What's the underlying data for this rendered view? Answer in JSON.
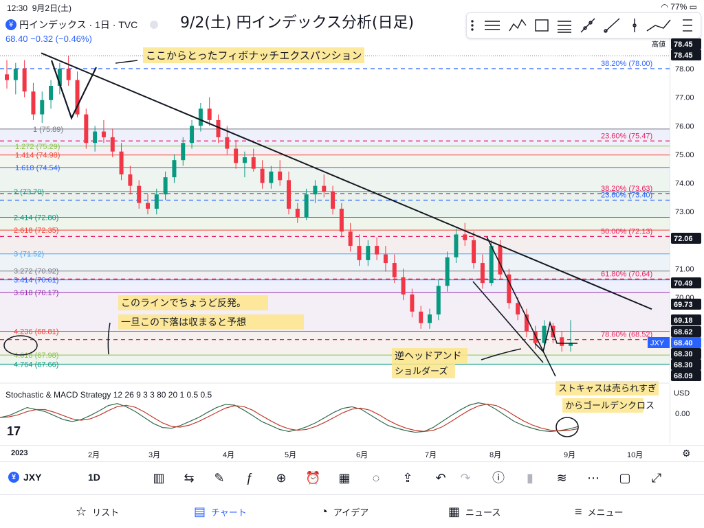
{
  "status_bar": {
    "time": "12:30",
    "date": "9月2日(土)",
    "battery": "77%"
  },
  "symbol": {
    "title": "円インデックス · 1日 · TVC",
    "last": "68.40",
    "change": "−0.32 (−0.46%)",
    "code": "JXY",
    "timeframe": "1D"
  },
  "price_axis": {
    "high_label": "高値",
    "ticks": [
      "78.00",
      "77.00",
      "76.00",
      "75.00",
      "74.00",
      "73.00",
      "71.00",
      "70.00"
    ],
    "markers": [
      {
        "text": "78.45",
        "bg": "#131722",
        "fg": "#ffffff"
      },
      {
        "text": "78.45",
        "bg": "#131722",
        "fg": "#ffffff"
      },
      {
        "text": "72.06",
        "bg": "#131722",
        "fg": "#ffffff"
      },
      {
        "text": "70.49",
        "bg": "#131722",
        "fg": "#ffffff"
      },
      {
        "text": "69.73",
        "bg": "#131722",
        "fg": "#ffffff"
      },
      {
        "text": "69.18",
        "bg": "#131722",
        "fg": "#ffffff"
      },
      {
        "text": "68.62",
        "bg": "#131722",
        "fg": "#ffffff"
      },
      {
        "text": "68.40",
        "bg": "#2962ff",
        "fg": "#ffffff"
      },
      {
        "text": "68.30",
        "bg": "#131722",
        "fg": "#ffffff"
      },
      {
        "text": "68.30",
        "bg": "#131722",
        "fg": "#ffffff"
      },
      {
        "text": "68.09",
        "bg": "#131722",
        "fg": "#ffffff"
      }
    ],
    "symbol_tag": "JXY"
  },
  "fib_retracement": [
    {
      "text": "38.20% (78.00)",
      "color": "#2962ff"
    },
    {
      "text": "23.60% (75.47)",
      "color": "#e91e63"
    },
    {
      "text": "38.20% (73.63)",
      "color": "#e91e63"
    },
    {
      "text": "23.60% (73.40)",
      "color": "#2962ff"
    },
    {
      "text": "50.00% (72.13)",
      "color": "#e91e63"
    },
    {
      "text": "61.80% (70.64)",
      "color": "#e91e63"
    },
    {
      "text": "78.60% (68.52)",
      "color": "#e91e63"
    }
  ],
  "fib_extension": [
    {
      "text": "1 (75.89)",
      "color": "#787b86"
    },
    {
      "text": "1.272 (75.29)",
      "color": "#8bc34a"
    },
    {
      "text": "1.414 (74.98)",
      "color": "#f44336"
    },
    {
      "text": "1.618 (74.54)",
      "color": "#2962ff"
    },
    {
      "text": "2 (73.70)",
      "color": "#089981"
    },
    {
      "text": "2.414 (72.80)",
      "color": "#089981"
    },
    {
      "text": "2.618 (72.35)",
      "color": "#f44336"
    },
    {
      "text": "3 (71.52)",
      "color": "#42a5f5"
    },
    {
      "text": "3.272 (70.92)",
      "color": "#787b86"
    },
    {
      "text": "3.414 (70.61)",
      "color": "#2962ff"
    },
    {
      "text": "3.618 (70.17)",
      "color": "#9c27b0"
    },
    {
      "text": "4.236 (68.81)",
      "color": "#f44336"
    },
    {
      "text": "4.618 (67.98)",
      "color": "#8bc34a"
    },
    {
      "text": "4.764 (67.66)",
      "color": "#089981"
    }
  ],
  "annotations": {
    "title": "9/2(土) 円インデックス分析(日足)",
    "note_fib": "ここからとったフィボナッチエクスパンション",
    "note_line_1": "このラインでちょうど反発。",
    "note_line_2": "一旦この下落は収まると予想",
    "note_pattern_1": "逆ヘッドアンド",
    "note_pattern_2": "ショルダーズ",
    "note_stoch_1": "ストキャスは売られすぎ",
    "note_stoch_2": "からゴールデンクロス"
  },
  "indicator": {
    "label": "Stochastic & MACD Strategy 12 26 9 3 3 80 20 1 0.5 0.5",
    "currency": "USD",
    "zero": "0.00"
  },
  "time_axis": [
    "2023",
    "2月",
    "3月",
    "4月",
    "5月",
    "6月",
    "7月",
    "8月",
    "9月",
    "10月"
  ],
  "toolbar_icons": [
    "candles-icon",
    "replay-icon",
    "pen-icon",
    "formula-icon",
    "add-icon",
    "alert-icon",
    "layout-icon",
    "idea-icon",
    "share-icon",
    "undo-icon",
    "redo-icon",
    "info-icon",
    "bars-icon",
    "trend-icon",
    "more-icon",
    "rect-icon",
    "fullscreen-icon"
  ],
  "tabs": [
    {
      "label": "リスト",
      "icon": "☆"
    },
    {
      "label": "チャート",
      "icon": "▤"
    },
    {
      "label": "アイデア",
      "icon": "◔"
    },
    {
      "label": "ニュース",
      "icon": "▦"
    },
    {
      "label": "メニュー",
      "icon": "≡"
    }
  ],
  "candles": [
    [
      77.8,
      78.3,
      77.3,
      77.6
    ],
    [
      77.6,
      78.2,
      77.1,
      78.0
    ],
    [
      78.0,
      78.3,
      77.0,
      77.2
    ],
    [
      77.2,
      77.5,
      76.2,
      76.4
    ],
    [
      76.4,
      77.2,
      76.1,
      76.9
    ],
    [
      76.9,
      77.6,
      76.6,
      77.4
    ],
    [
      77.4,
      78.2,
      77.1,
      78.0
    ],
    [
      78.0,
      78.45,
      77.4,
      77.6
    ],
    [
      77.6,
      77.9,
      76.3,
      76.4
    ],
    [
      76.4,
      76.6,
      75.2,
      75.4
    ],
    [
      75.4,
      76.0,
      75.1,
      75.8
    ],
    [
      75.8,
      76.2,
      75.4,
      75.6
    ],
    [
      75.6,
      75.9,
      74.9,
      75.1
    ],
    [
      75.1,
      75.4,
      74.1,
      74.3
    ],
    [
      74.3,
      74.6,
      73.6,
      73.9
    ],
    [
      73.9,
      74.1,
      73.1,
      73.3
    ],
    [
      73.3,
      73.6,
      72.9,
      73.1
    ],
    [
      73.1,
      73.8,
      72.9,
      73.6
    ],
    [
      73.6,
      74.4,
      73.4,
      74.2
    ],
    [
      74.2,
      75.0,
      74.0,
      74.8
    ],
    [
      74.8,
      75.6,
      74.6,
      75.4
    ],
    [
      75.4,
      76.2,
      75.2,
      76.0
    ],
    [
      76.0,
      76.8,
      75.8,
      76.6
    ],
    [
      76.6,
      77.0,
      76.0,
      76.2
    ],
    [
      76.2,
      76.4,
      75.4,
      75.6
    ],
    [
      75.6,
      76.0,
      75.0,
      75.2
    ],
    [
      75.2,
      75.5,
      74.5,
      74.7
    ],
    [
      74.7,
      75.1,
      74.2,
      74.9
    ],
    [
      74.9,
      75.2,
      74.4,
      74.5
    ],
    [
      74.5,
      74.8,
      73.8,
      74.0
    ],
    [
      74.0,
      74.6,
      73.8,
      74.4
    ],
    [
      74.4,
      74.8,
      73.9,
      74.1
    ],
    [
      74.1,
      74.4,
      72.9,
      73.1
    ],
    [
      73.1,
      73.3,
      72.6,
      72.8
    ],
    [
      72.8,
      73.8,
      72.7,
      73.6
    ],
    [
      73.6,
      74.1,
      73.3,
      73.9
    ],
    [
      73.9,
      74.3,
      73.5,
      73.7
    ],
    [
      73.7,
      73.9,
      72.9,
      73.1
    ],
    [
      73.1,
      73.3,
      72.1,
      72.3
    ],
    [
      72.3,
      72.6,
      71.6,
      71.8
    ],
    [
      71.8,
      72.2,
      71.1,
      71.3
    ],
    [
      71.3,
      72.0,
      71.1,
      71.8
    ],
    [
      71.8,
      72.1,
      71.3,
      71.5
    ],
    [
      71.5,
      71.8,
      70.9,
      71.2
    ],
    [
      71.2,
      71.5,
      70.5,
      70.7
    ],
    [
      70.7,
      71.0,
      69.9,
      70.1
    ],
    [
      70.1,
      70.3,
      69.3,
      69.5
    ],
    [
      69.5,
      69.7,
      68.9,
      69.1
    ],
    [
      69.1,
      69.6,
      68.9,
      69.4
    ],
    [
      69.4,
      70.6,
      69.2,
      70.4
    ],
    [
      70.4,
      71.6,
      70.2,
      71.4
    ],
    [
      71.4,
      72.4,
      71.2,
      72.2
    ],
    [
      72.2,
      72.6,
      71.8,
      72.0
    ],
    [
      72.0,
      72.3,
      71.0,
      71.2
    ],
    [
      71.2,
      71.5,
      70.3,
      70.5
    ],
    [
      70.5,
      72.0,
      70.4,
      71.8
    ],
    [
      71.8,
      72.0,
      70.6,
      70.8
    ],
    [
      70.8,
      71.0,
      69.6,
      69.8
    ],
    [
      69.8,
      70.0,
      69.2,
      69.4
    ],
    [
      69.4,
      69.6,
      68.6,
      68.8
    ],
    [
      68.8,
      69.0,
      68.2,
      68.4
    ],
    [
      68.4,
      69.2,
      68.2,
      69.0
    ],
    [
      69.0,
      69.1,
      68.4,
      68.6
    ],
    [
      68.6,
      68.8,
      68.1,
      68.3
    ],
    [
      68.3,
      69.2,
      68.1,
      68.4
    ]
  ],
  "stoch": [
    0.55,
    0.6,
    0.7,
    0.8,
    0.75,
    0.7,
    0.6,
    0.5,
    0.45,
    0.5,
    0.6,
    0.72,
    0.85,
    0.9,
    0.82,
    0.7,
    0.55,
    0.4,
    0.3,
    0.28,
    0.35,
    0.45,
    0.55,
    0.68,
    0.8,
    0.88,
    0.86,
    0.74,
    0.6,
    0.45,
    0.35,
    0.25,
    0.2,
    0.24,
    0.32,
    0.42,
    0.55,
    0.68,
    0.78,
    0.82,
    0.76,
    0.62,
    0.48,
    0.35,
    0.28,
    0.22,
    0.18,
    0.2,
    0.3,
    0.45,
    0.6,
    0.74,
    0.86,
    0.92,
    0.88,
    0.75,
    0.6,
    0.45,
    0.35,
    0.28,
    0.22,
    0.2,
    0.22,
    0.26,
    0.32
  ],
  "colors": {
    "up": "#089981",
    "down": "#f23645",
    "accent": "#2962ff"
  }
}
